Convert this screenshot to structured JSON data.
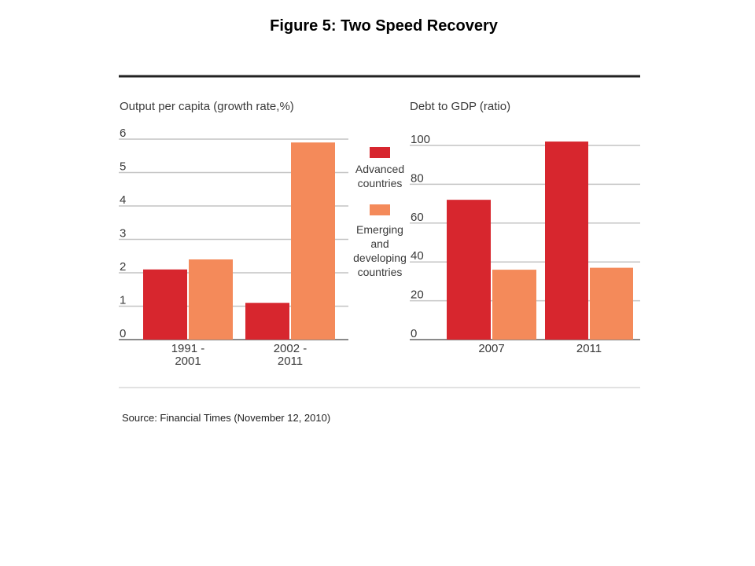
{
  "figure": {
    "title": "Figure 5: Two Speed Recovery",
    "source": "Source: Financial Times (November 12, 2010)"
  },
  "colors": {
    "advanced": "#d7262e",
    "emerging": "#f48a5a",
    "grid": "#c4c4c4",
    "rule": "#222222",
    "background": "#ffffff"
  },
  "chart_data": [
    {
      "type": "bar",
      "title": "Output per capita (growth rate,%)",
      "categories": [
        "1991 - 2001",
        "2002 - 2011"
      ],
      "category_lines": [
        [
          "1991 -",
          "2001"
        ],
        [
          "2002 -",
          "2011"
        ]
      ],
      "series": [
        {
          "name": "Advanced countries",
          "values": [
            2.1,
            1.1
          ]
        },
        {
          "name": "Emerging and developing countries",
          "values": [
            2.4,
            5.9
          ]
        }
      ],
      "ylim": [
        0,
        6
      ],
      "yticks": [
        "0",
        "1",
        "2",
        "3",
        "4",
        "5",
        "6"
      ],
      "grid": true
    },
    {
      "type": "bar",
      "title": "Debt to GDP (ratio)",
      "categories": [
        "2007",
        "2011"
      ],
      "category_lines": [
        [
          "2007"
        ],
        [
          "2011"
        ]
      ],
      "series": [
        {
          "name": "Advanced countries",
          "values": [
            72,
            102
          ]
        },
        {
          "name": "Emerging and developing countries",
          "values": [
            36,
            37
          ]
        }
      ],
      "ylim": [
        0,
        100
      ],
      "yticks": [
        "0",
        "20",
        "40",
        "60",
        "80",
        "100"
      ],
      "grid": true
    }
  ],
  "legend": {
    "items": [
      {
        "lines": [
          "Advanced",
          "countries"
        ],
        "color": "#d7262e"
      },
      {
        "lines": [
          "Emerging",
          "and",
          "developing",
          "countries"
        ],
        "color": "#f48a5a"
      }
    ]
  }
}
